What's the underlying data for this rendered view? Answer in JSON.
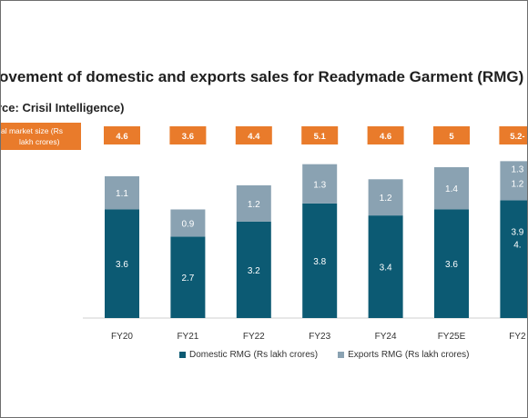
{
  "title": "ovement of domestic and exports sales for Readymade Garment (RMG) Sec",
  "subtitle": "rce: Crisil Intelligence)",
  "market_label": [
    "al market size (Rs",
    "lakh crores)"
  ],
  "colors": {
    "domestic": "#0c5a73",
    "exports": "#8aa2b2",
    "total_box": "#e97b2b"
  },
  "chart_data": {
    "type": "bar",
    "stacked": true,
    "categories": [
      "FY20",
      "FY21",
      "FY22",
      "FY23",
      "FY24",
      "FY25E",
      "FY2"
    ],
    "series": [
      {
        "name": "Domestic RMG (Rs lakh crores)",
        "values": [
          3.6,
          2.7,
          3.2,
          3.8,
          3.4,
          3.6,
          3.9
        ],
        "labels": [
          "3.6",
          "2.7",
          "3.2",
          "3.8",
          "3.4",
          "3.6",
          "3.9"
        ]
      },
      {
        "name": "Exports RMG (Rs lakh crores)",
        "values": [
          1.1,
          0.9,
          1.2,
          1.3,
          1.2,
          1.4,
          1.3
        ],
        "labels": [
          "1.1",
          "0.9",
          "1.2",
          "1.3",
          "1.2",
          "1.4",
          "1.3"
        ]
      }
    ],
    "extra_labels": {
      "last_domestic_2": "4.",
      "last_exports_2": "1.2"
    },
    "totals": [
      "4.6",
      "3.6",
      "4.4",
      "5.1",
      "4.6",
      "5",
      "5.2-"
    ],
    "legend": {
      "position": "bottom",
      "entries": [
        "Domestic RMG (Rs lakh crores)",
        "Exports RMG (Rs lakh crores)"
      ]
    }
  }
}
